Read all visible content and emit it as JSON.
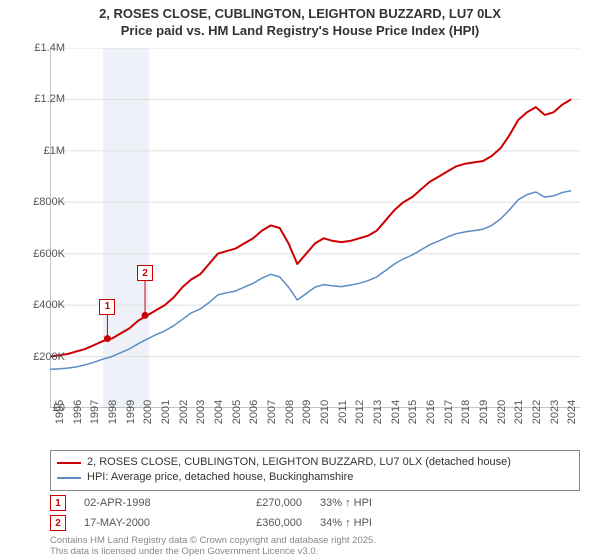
{
  "title_line1": "2, ROSES CLOSE, CUBLINGTON, LEIGHTON BUZZARD, LU7 0LX",
  "title_line2": "Price paid vs. HM Land Registry's House Price Index (HPI)",
  "chart": {
    "type": "line",
    "background_color": "#ffffff",
    "axis_color": "#888888",
    "grid_color": "#e0e0e0",
    "title_fontsize": 13,
    "label_fontsize": 11,
    "x_years": [
      1995,
      1996,
      1997,
      1998,
      1999,
      2000,
      2001,
      2002,
      2003,
      2004,
      2005,
      2006,
      2007,
      2008,
      2009,
      2010,
      2011,
      2012,
      2013,
      2014,
      2015,
      2016,
      2017,
      2018,
      2019,
      2020,
      2021,
      2022,
      2023,
      2024
    ],
    "x_domain_min": 1995,
    "x_domain_max": 2025,
    "ylim": [
      0,
      1400000
    ],
    "yticks": [
      0,
      200000,
      400000,
      600000,
      800000,
      1000000,
      1200000,
      1400000
    ],
    "ytick_labels": [
      "£0",
      "£200K",
      "£400K",
      "£600K",
      "£800K",
      "£1M",
      "£1.2M",
      "£1.4M"
    ],
    "sale_highlight_xmin": 1998.0,
    "sale_highlight_xmax": 2000.6,
    "sale_highlight_color": "#eef2f8",
    "series": [
      {
        "key": "price_paid",
        "label": "2, ROSES CLOSE, CUBLINGTON, LEIGHTON BUZZARD, LU7 0LX (detached house)",
        "color": "#cc0000",
        "line_width": 2,
        "x": [
          1995,
          1995.5,
          1996,
          1996.5,
          1997,
          1997.5,
          1998,
          1998.5,
          1999,
          1999.5,
          2000,
          2000.5,
          2001,
          2001.5,
          2002,
          2002.5,
          2003,
          2003.5,
          2004,
          2004.5,
          2005,
          2005.5,
          2006,
          2006.5,
          2007,
          2007.5,
          2008,
          2008.5,
          2009,
          2009.5,
          2010,
          2010.5,
          2011,
          2011.5,
          2012,
          2012.5,
          2013,
          2013.5,
          2014,
          2014.5,
          2015,
          2015.5,
          2016,
          2016.5,
          2017,
          2017.5,
          2018,
          2018.5,
          2019,
          2019.5,
          2020,
          2020.5,
          2021,
          2021.5,
          2022,
          2022.5,
          2023,
          2023.5,
          2024,
          2024.5
        ],
        "y": [
          200000,
          205000,
          210000,
          220000,
          230000,
          245000,
          260000,
          270000,
          290000,
          310000,
          340000,
          360000,
          380000,
          400000,
          430000,
          470000,
          500000,
          520000,
          560000,
          600000,
          610000,
          620000,
          640000,
          660000,
          690000,
          710000,
          700000,
          640000,
          560000,
          600000,
          640000,
          660000,
          650000,
          645000,
          650000,
          660000,
          670000,
          690000,
          730000,
          770000,
          800000,
          820000,
          850000,
          880000,
          900000,
          920000,
          940000,
          950000,
          955000,
          960000,
          980000,
          1010000,
          1060000,
          1120000,
          1150000,
          1170000,
          1140000,
          1150000,
          1180000,
          1200000
        ]
      },
      {
        "key": "hpi",
        "label": "HPI: Average price, detached house, Buckinghamshire",
        "color": "#5b8cc4",
        "line_width": 1.5,
        "x": [
          1995,
          1995.5,
          1996,
          1996.5,
          1997,
          1997.5,
          1998,
          1998.5,
          1999,
          1999.5,
          2000,
          2000.5,
          2001,
          2001.5,
          2002,
          2002.5,
          2003,
          2003.5,
          2004,
          2004.5,
          2005,
          2005.5,
          2006,
          2006.5,
          2007,
          2007.5,
          2008,
          2008.5,
          2009,
          2009.5,
          2010,
          2010.5,
          2011,
          2011.5,
          2012,
          2012.5,
          2013,
          2013.5,
          2014,
          2014.5,
          2015,
          2015.5,
          2016,
          2016.5,
          2017,
          2017.5,
          2018,
          2018.5,
          2019,
          2019.5,
          2020,
          2020.5,
          2021,
          2021.5,
          2022,
          2022.5,
          2023,
          2023.5,
          2024,
          2024.5
        ],
        "y": [
          150000,
          152000,
          155000,
          160000,
          168000,
          178000,
          190000,
          200000,
          215000,
          230000,
          250000,
          268000,
          285000,
          300000,
          320000,
          345000,
          370000,
          385000,
          410000,
          440000,
          448000,
          455000,
          470000,
          485000,
          505000,
          520000,
          510000,
          470000,
          420000,
          445000,
          470000,
          480000,
          475000,
          472000,
          478000,
          485000,
          495000,
          510000,
          535000,
          560000,
          580000,
          595000,
          615000,
          635000,
          650000,
          665000,
          678000,
          685000,
          690000,
          695000,
          710000,
          735000,
          770000,
          810000,
          830000,
          840000,
          820000,
          825000,
          838000,
          845000
        ]
      }
    ],
    "sale_markers": [
      {
        "n": "1",
        "x": 1998.25,
        "y": 270000,
        "badge_dx": 0,
        "badge_dy": -40,
        "date": "02-APR-1998",
        "price": "£270,000",
        "delta": "33% ↑ HPI",
        "color": "#cc0000"
      },
      {
        "n": "2",
        "x": 2000.38,
        "y": 360000,
        "badge_dx": 0,
        "badge_dy": -50,
        "date": "17-MAY-2000",
        "price": "£360,000",
        "delta": "34% ↑ HPI",
        "color": "#cc0000"
      }
    ]
  },
  "footnote_line1": "Contains HM Land Registry data © Crown copyright and database right 2025.",
  "footnote_line2": "This data is licensed under the Open Government Licence v3.0."
}
